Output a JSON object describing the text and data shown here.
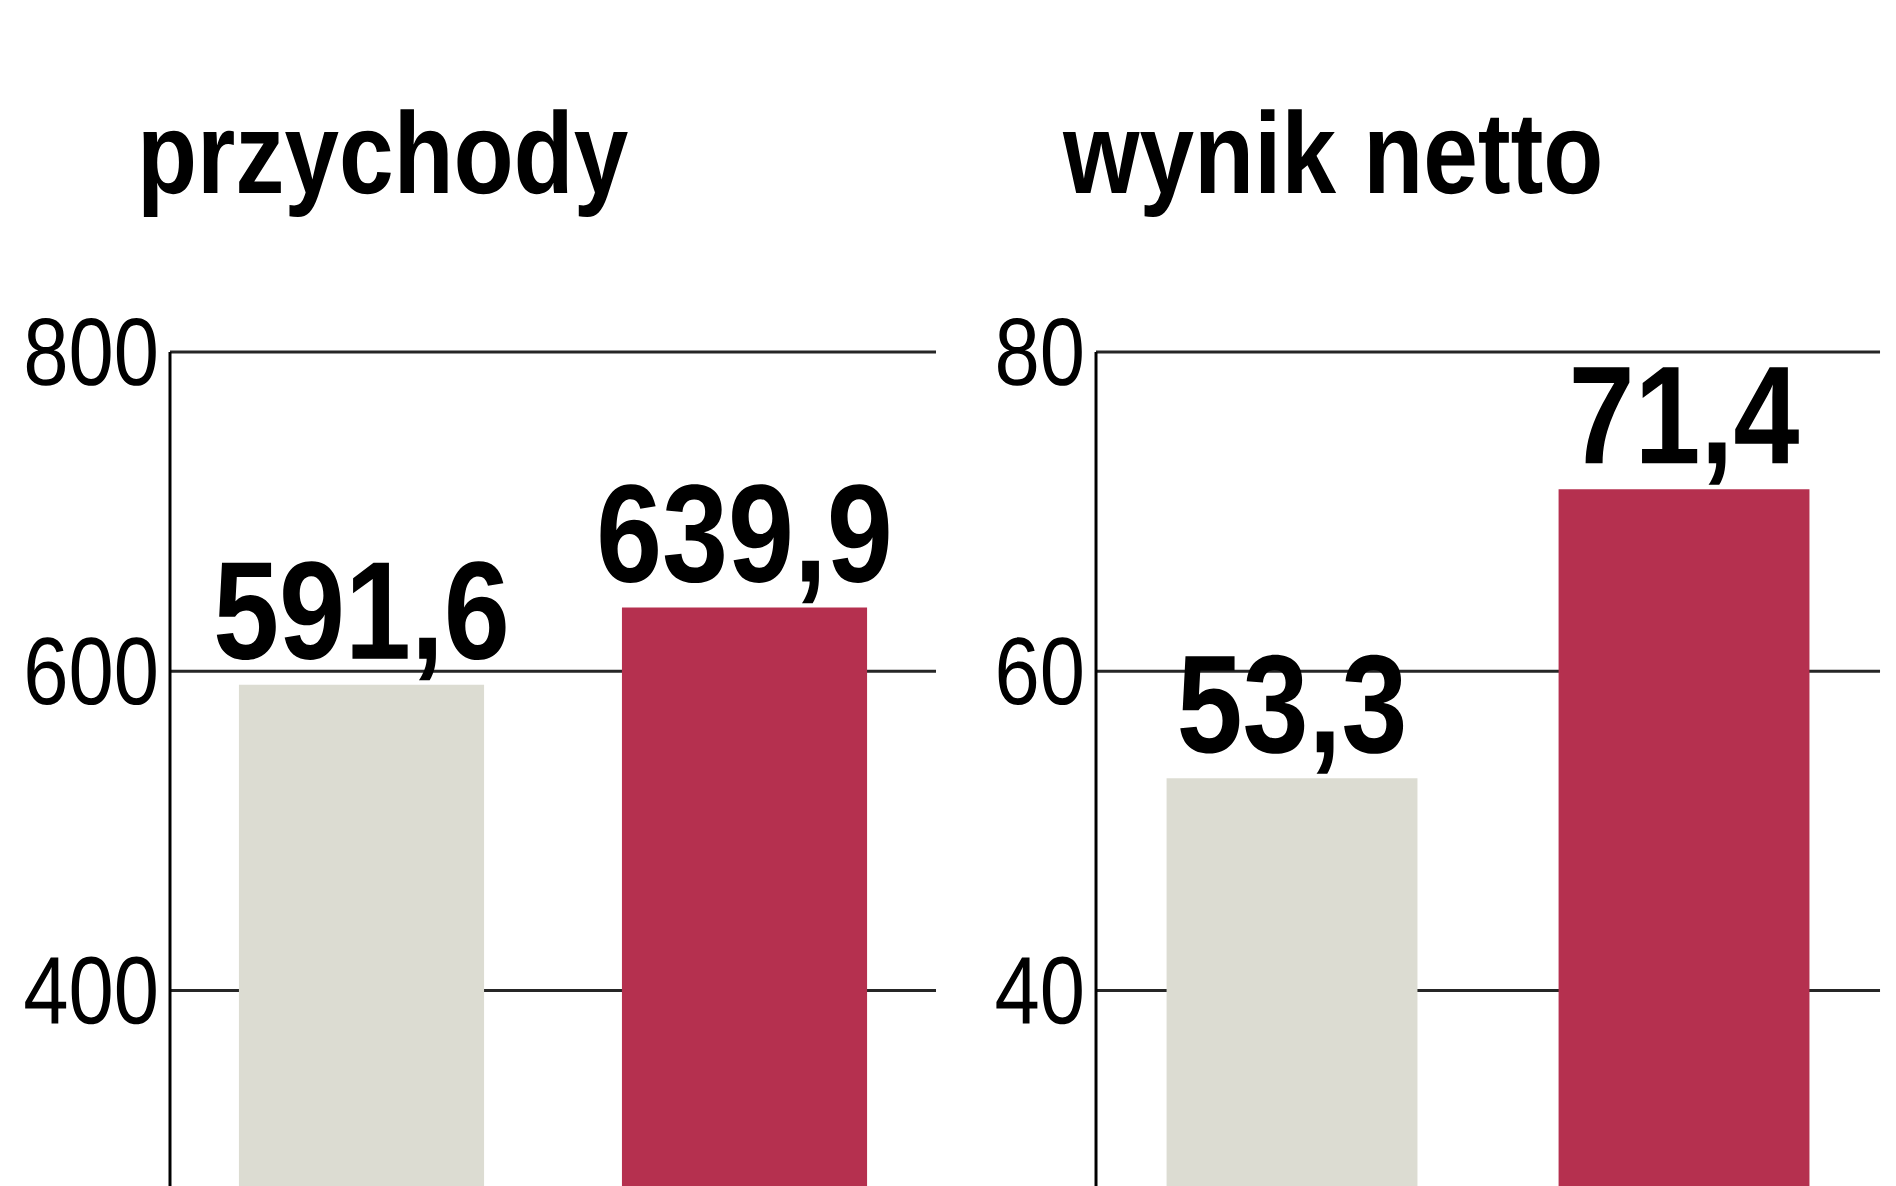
{
  "chart_data": [
    {
      "type": "bar",
      "title": "przychody",
      "categories": [
        null,
        null
      ],
      "values": [
        591.6,
        639.9
      ],
      "colors": [
        "#dcdcd2",
        "#b5304f"
      ],
      "value_labels": [
        "591,6",
        "639,9"
      ],
      "ylim": [
        277.5,
        800
      ],
      "yticks": [
        400,
        600,
        800
      ],
      "grid": "y",
      "tick_labels": "y"
    },
    {
      "type": "bar",
      "title": "wynik netto",
      "categories": [
        null,
        null
      ],
      "values": [
        53.3,
        71.4
      ],
      "colors": [
        "#dcdcd2",
        "#b5304f"
      ],
      "value_labels": [
        "53,3",
        "71,4"
      ],
      "ylim": [
        27.75,
        80
      ],
      "yticks": [
        40,
        60,
        80
      ],
      "grid": "y",
      "tick_labels": "y"
    }
  ]
}
